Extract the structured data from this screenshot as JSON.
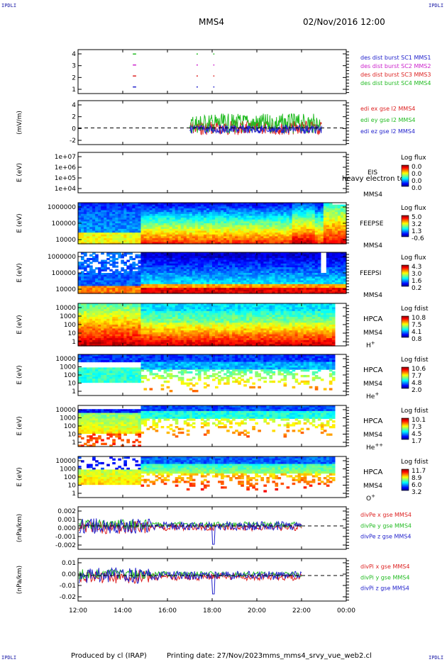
{
  "corner_marks": [
    "IPDLI",
    "IPDLI",
    "IPDLI",
    "IPDLI"
  ],
  "header": {
    "spacecraft": "MMS4",
    "datetime": "02/Nov/2016 12:00"
  },
  "footer": {
    "produced": "Produced by cl (IRAP)",
    "printing": "Printing date: 27/Nov/2023",
    "file": "mms_mms4_srvy_vue_web2.cl"
  },
  "chart_data": {
    "type": "heatmap",
    "x_ticks": [
      "12:00",
      "14:00",
      "16:00",
      "18:00",
      "20:00",
      "22:00",
      "00:00"
    ],
    "xlim_hours": [
      12,
      24
    ],
    "panels": [
      {
        "id": "burst",
        "kind": "markers",
        "ylabel": "",
        "yticks": [
          "4",
          "3",
          "2",
          "1"
        ],
        "legend": [
          {
            "text": "des dist burst SC1 MMS1",
            "color": "#2222cc"
          },
          {
            "text": "des dist burst SC2 MMS2",
            "color": "#cc22cc"
          },
          {
            "text": "des dist burst SC3 MMS3",
            "color": "#dd2222"
          },
          {
            "text": "des dist burst SC4 MMS4",
            "color": "#22bb22"
          }
        ]
      },
      {
        "id": "edi",
        "kind": "lines",
        "ylabel": "(mV/m)",
        "yticks": [
          "4",
          "2",
          "0",
          "-2"
        ],
        "legend": [
          {
            "text": "edi ex gse l2 MMS4",
            "color": "#dd2222"
          },
          {
            "text": "edi ey gse l2 MMS4",
            "color": "#22bb22"
          },
          {
            "text": "edi ez gse l2 MMS4",
            "color": "#2222cc"
          }
        ]
      },
      {
        "id": "eis",
        "kind": "empty",
        "ylabel": "E (eV)",
        "yticks": [
          "1e+07",
          "1e+06",
          "1e+05",
          "1e+04"
        ],
        "label": [
          "EIS",
          "MMS4"
        ],
        "overlay": "heavy electron to",
        "cb_title": "Log flux",
        "cb_ticks": [
          "0.0",
          "0.0",
          "0.0",
          "0.0"
        ]
      },
      {
        "id": "feepse",
        "kind": "spectro",
        "ylabel": "E (eV)",
        "yticks": [
          "1000000",
          "100000",
          "10000"
        ],
        "label": [
          "FEEPSE",
          "MMS4"
        ],
        "cb_title": "Log flux",
        "cb_ticks": [
          "5.0",
          "3.2",
          "1.3",
          "-0.6"
        ]
      },
      {
        "id": "feepsi",
        "kind": "spectro",
        "ylabel": "E (eV)",
        "yticks": [
          "1000000",
          "100000",
          "10000"
        ],
        "label": [
          "FEEPSI",
          "MMS4"
        ],
        "cb_title": "Log flux",
        "cb_ticks": [
          "4.3",
          "3.0",
          "1.6",
          "0.2"
        ]
      },
      {
        "id": "hpca_h",
        "kind": "spectro",
        "ylabel": "E (eV)",
        "yticks": [
          "10000",
          "1000",
          "100",
          "10",
          "1"
        ],
        "label": [
          "HPCA",
          "MMS4",
          "H+"
        ],
        "cb_title": "Log fdist",
        "cb_ticks": [
          "10.8",
          "7.5",
          "4.1",
          "0.8"
        ]
      },
      {
        "id": "hpca_he",
        "kind": "spectro",
        "ylabel": "E (eV)",
        "yticks": [
          "10000",
          "1000",
          "100",
          "10",
          "1"
        ],
        "label": [
          "HPCA",
          "MMS4",
          "He+"
        ],
        "cb_title": "Log fdist",
        "cb_ticks": [
          "10.6",
          "7.7",
          "4.8",
          "2.0"
        ]
      },
      {
        "id": "hpca_hepp",
        "kind": "spectro",
        "ylabel": "E (eV)",
        "yticks": [
          "10000",
          "1000",
          "100",
          "10",
          "1"
        ],
        "label": [
          "HPCA",
          "MMS4",
          "He++"
        ],
        "cb_title": "Log fdist",
        "cb_ticks": [
          "10.1",
          "7.3",
          "4.5",
          "1.7"
        ]
      },
      {
        "id": "hpca_o",
        "kind": "spectro",
        "ylabel": "E (eV)",
        "yticks": [
          "10000",
          "1000",
          "100",
          "10",
          "1"
        ],
        "label": [
          "HPCA",
          "MMS4",
          "O+"
        ],
        "cb_title": "Log fdist",
        "cb_ticks": [
          "11.7",
          "8.9",
          "6.0",
          "3.2"
        ]
      },
      {
        "id": "divpe",
        "kind": "lines",
        "ylabel": "(nPa/km)",
        "yticks": [
          "0.002",
          "0.001",
          "0.000",
          "-0.001",
          "-0.002"
        ],
        "legend": [
          {
            "text": "divPe x gse MMS4",
            "color": "#dd2222"
          },
          {
            "text": "divPe y gse MMS4",
            "color": "#22bb22"
          },
          {
            "text": "divPe z gse MMS4",
            "color": "#2222cc"
          }
        ]
      },
      {
        "id": "divpi",
        "kind": "lines",
        "ylabel": "(nPa/km)",
        "yticks": [
          "0.01",
          "0.00",
          "-0.01",
          "-0.02"
        ],
        "legend": [
          {
            "text": "divPi x gse MMS4",
            "color": "#dd2222"
          },
          {
            "text": "divPi y gse MMS4",
            "color": "#22bb22"
          },
          {
            "text": "divPi z gse MMS4",
            "color": "#2222cc"
          }
        ]
      }
    ]
  }
}
